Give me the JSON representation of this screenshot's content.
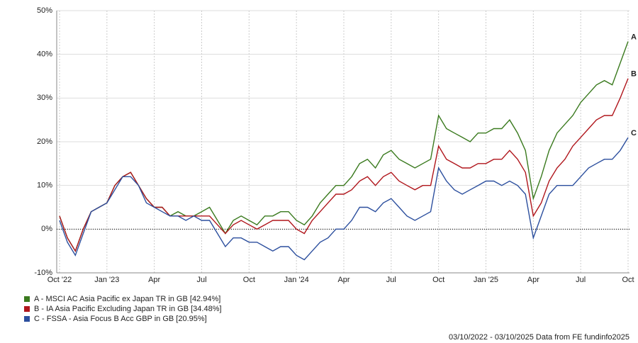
{
  "chart_data": {
    "type": "line",
    "x": [
      0,
      0.5,
      1,
      1.5,
      2,
      2.5,
      3,
      3.5,
      4,
      4.5,
      5,
      5.5,
      6,
      6.5,
      7,
      7.5,
      8,
      8.5,
      9,
      9.5,
      10,
      10.5,
      11,
      11.5,
      12,
      12.5,
      13,
      13.5,
      14,
      14.5,
      15,
      15.5,
      16,
      16.5,
      17,
      17.5,
      18,
      18.5,
      19,
      19.5,
      20,
      20.5,
      21,
      21.5,
      22,
      22.5,
      23,
      23.5,
      24,
      24.5,
      25,
      25.5,
      26,
      26.5,
      27,
      27.5,
      28,
      28.5,
      29,
      29.5,
      30,
      30.5,
      31,
      31.5,
      32,
      32.5,
      33,
      33.5,
      34,
      34.5,
      35,
      35.5,
      36
    ],
    "xlim": [
      0,
      36
    ],
    "xticks": [
      {
        "value": 0,
        "label": "Oct '22"
      },
      {
        "value": 3,
        "label": "Jan '23"
      },
      {
        "value": 6,
        "label": "Apr"
      },
      {
        "value": 9,
        "label": "Jul"
      },
      {
        "value": 12,
        "label": "Oct"
      },
      {
        "value": 15,
        "label": "Jan '24"
      },
      {
        "value": 18,
        "label": "Apr"
      },
      {
        "value": 21,
        "label": "Jul"
      },
      {
        "value": 24,
        "label": "Oct"
      },
      {
        "value": 27,
        "label": "Jan '25"
      },
      {
        "value": 30,
        "label": "Apr"
      },
      {
        "value": 33,
        "label": "Jul"
      },
      {
        "value": 36,
        "label": "Oct"
      }
    ],
    "ylim": [
      -10,
      50
    ],
    "yticks": [
      {
        "value": -10,
        "label": "-10%"
      },
      {
        "value": 0,
        "label": "0%"
      },
      {
        "value": 10,
        "label": "10%"
      },
      {
        "value": 20,
        "label": "20%"
      },
      {
        "value": 30,
        "label": "30%"
      },
      {
        "value": 40,
        "label": "40%"
      },
      {
        "value": 50,
        "label": "50%"
      }
    ],
    "grid": true,
    "series": [
      {
        "name": "A - MSCI AC Asia Pacific ex Japan TR in GB [42.94%]",
        "end_label": "A",
        "color": "#3a7a1e",
        "values": [
          3,
          -2,
          -5,
          0,
          4,
          5,
          6,
          10,
          12,
          13,
          10,
          7,
          5,
          5,
          3,
          4,
          3,
          3,
          4,
          5,
          2,
          -1,
          2,
          3,
          2,
          1,
          3,
          3,
          4,
          4,
          2,
          1,
          3,
          6,
          8,
          10,
          10,
          12,
          15,
          16,
          14,
          17,
          18,
          16,
          15,
          14,
          15,
          16,
          26,
          23,
          22,
          21,
          20,
          22,
          22,
          23,
          23,
          25,
          22,
          18,
          7,
          12,
          18,
          22,
          24,
          26,
          29,
          31,
          33,
          34,
          33,
          38,
          42.94
        ]
      },
      {
        "name": "B - IA Asia Pacific Excluding Japan TR in GB [34.48%]",
        "end_label": "B",
        "color": "#b0161c",
        "values": [
          3,
          -2,
          -5,
          0,
          4,
          5,
          6,
          10,
          12,
          13,
          10,
          7,
          5,
          5,
          3,
          3,
          3,
          3,
          3,
          3,
          1,
          -1,
          1,
          2,
          1,
          0,
          1,
          2,
          2,
          2,
          0,
          -1,
          2,
          4,
          6,
          8,
          8,
          9,
          11,
          12,
          10,
          12,
          13,
          11,
          10,
          9,
          10,
          10,
          19,
          16,
          15,
          14,
          14,
          15,
          15,
          16,
          16,
          18,
          16,
          13,
          3,
          6,
          11,
          14,
          16,
          19,
          21,
          23,
          25,
          26,
          26,
          30,
          34.48
        ]
      },
      {
        "name": "C - FSSA - Asia Focus B Acc GBP in GB [20.95%]",
        "end_label": "C",
        "color": "#2c4f9e",
        "values": [
          2,
          -3,
          -6,
          -1,
          4,
          5,
          6,
          9,
          12,
          12,
          10,
          6,
          5,
          4,
          3,
          3,
          2,
          3,
          2,
          2,
          -1,
          -4,
          -2,
          -2,
          -3,
          -3,
          -4,
          -5,
          -4,
          -4,
          -6,
          -7,
          -5,
          -3,
          -2,
          0,
          0,
          2,
          5,
          5,
          4,
          6,
          7,
          5,
          3,
          2,
          3,
          4,
          14,
          11,
          9,
          8,
          9,
          10,
          11,
          11,
          10,
          11,
          10,
          8,
          -2,
          3,
          8,
          10,
          10,
          10,
          12,
          14,
          15,
          16,
          16,
          18,
          20.95
        ]
      }
    ],
    "footer": "03/10/2022 - 03/10/2025 Data from FE fundinfo2025"
  }
}
